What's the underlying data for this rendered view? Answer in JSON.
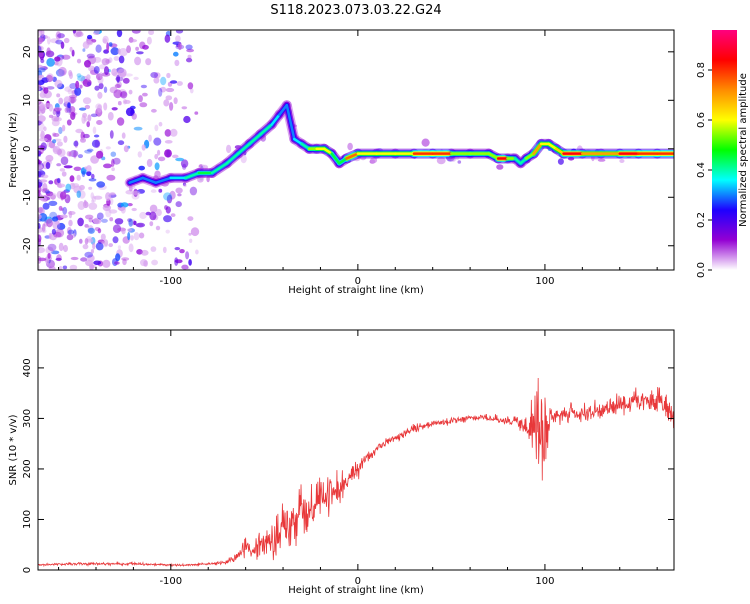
{
  "figure": {
    "title": "S118.2023.073.03.22.G24"
  },
  "chart_data": [
    {
      "type": "heatmap",
      "xlabel": "Height of straight line (km)",
      "ylabel": "Frequency (Hz)",
      "xlim": [
        -171,
        169
      ],
      "ylim": [
        -25,
        24.5
      ],
      "x_ticks": [
        -100,
        0,
        100
      ],
      "y_ticks": [
        -20,
        -10,
        0,
        10,
        20
      ],
      "grid": false,
      "colorbar": {
        "label": "Normalized spectral amplitude",
        "range": [
          0,
          0.96
        ],
        "ticks": [
          "0.0",
          "0.2",
          "0.4",
          "0.6",
          "0.8"
        ],
        "colors": [
          "#ffffff",
          "#9400d3",
          "#1e00ff",
          "#00ffff",
          "#00ff00",
          "#ffff00",
          "#ff8c00",
          "#ff0000",
          "#ff007f"
        ]
      },
      "ridge": {
        "x": [
          -122,
          -115,
          -108,
          -100,
          -92,
          -85,
          -78,
          -70,
          -64,
          -58,
          -52,
          -46,
          -42,
          -38,
          -34,
          -30,
          -26,
          -22,
          -18,
          -14,
          -10,
          -6,
          0,
          10,
          20,
          30,
          40,
          50,
          60,
          70,
          75,
          80,
          84,
          87,
          90,
          94,
          98,
          102,
          106,
          110,
          120,
          130,
          140,
          150,
          160,
          169
        ],
        "y": [
          -7,
          -6,
          -7,
          -6,
          -6,
          -5,
          -5,
          -3,
          -1,
          1,
          3,
          5,
          7,
          9,
          2,
          1,
          0,
          0,
          0,
          -1,
          -3,
          -2,
          -1,
          -1,
          -1,
          -1,
          -1,
          -1,
          -1,
          -1,
          -2,
          -2,
          -2,
          -3,
          -2,
          -1,
          1,
          1,
          0,
          -1,
          -1,
          -1,
          -1,
          -1,
          -1,
          -1
        ],
        "amplitude": [
          0.35,
          0.3,
          0.3,
          0.35,
          0.4,
          0.45,
          0.45,
          0.4,
          0.45,
          0.4,
          0.45,
          0.4,
          0.35,
          0.3,
          0.35,
          0.4,
          0.55,
          0.6,
          0.6,
          0.6,
          0.45,
          0.75,
          0.85,
          0.6,
          0.6,
          0.8,
          0.85,
          0.8,
          0.55,
          0.55,
          0.85,
          0.85,
          0.55,
          0.4,
          0.55,
          0.7,
          0.75,
          0.6,
          0.65,
          0.85,
          0.85,
          0.7,
          0.85,
          0.85,
          0.8,
          0.8
        ]
      }
    },
    {
      "type": "line",
      "xlabel": "Height of straight line (km)",
      "ylabel": "SNR (10 * v/v)",
      "xlim": [
        -171,
        169
      ],
      "ylim": [
        0,
        475
      ],
      "x_ticks": [
        -100,
        0,
        100
      ],
      "y_ticks": [
        0,
        100,
        200,
        300,
        400
      ],
      "grid": false,
      "series": [
        {
          "color": "#e8383a",
          "x": [
            -171,
            -150,
            -120,
            -100,
            -90,
            -80,
            -70,
            -65,
            -60,
            -55,
            -50,
            -45,
            -40,
            -35,
            -30,
            -25,
            -20,
            -15,
            -10,
            -5,
            0,
            5,
            10,
            15,
            20,
            25,
            30,
            35,
            40,
            45,
            50,
            55,
            60,
            65,
            70,
            75,
            80,
            85,
            90,
            95,
            100,
            103,
            106,
            110,
            115,
            120,
            125,
            130,
            135,
            140,
            145,
            150,
            155,
            160,
            165,
            169
          ],
          "y": [
            10,
            12,
            12,
            10,
            10,
            12,
            15,
            25,
            45,
            40,
            50,
            60,
            85,
            95,
            115,
            130,
            140,
            155,
            165,
            185,
            200,
            225,
            240,
            255,
            262,
            270,
            280,
            285,
            290,
            292,
            295,
            298,
            300,
            302,
            300,
            298,
            296,
            295,
            280,
            290,
            250,
            310,
            305,
            305,
            310,
            312,
            315,
            318,
            320,
            328,
            330,
            335,
            330,
            335,
            320,
            300
          ],
          "noise": [
            3,
            4,
            4,
            3,
            3,
            4,
            6,
            15,
            25,
            30,
            40,
            60,
            80,
            80,
            75,
            70,
            60,
            55,
            50,
            35,
            30,
            15,
            12,
            12,
            12,
            12,
            12,
            12,
            10,
            10,
            10,
            10,
            10,
            10,
            10,
            12,
            12,
            15,
            30,
            130,
            150,
            15,
            20,
            25,
            25,
            25,
            28,
            30,
            30,
            30,
            32,
            32,
            35,
            35,
            35,
            35
          ]
        }
      ]
    }
  ]
}
